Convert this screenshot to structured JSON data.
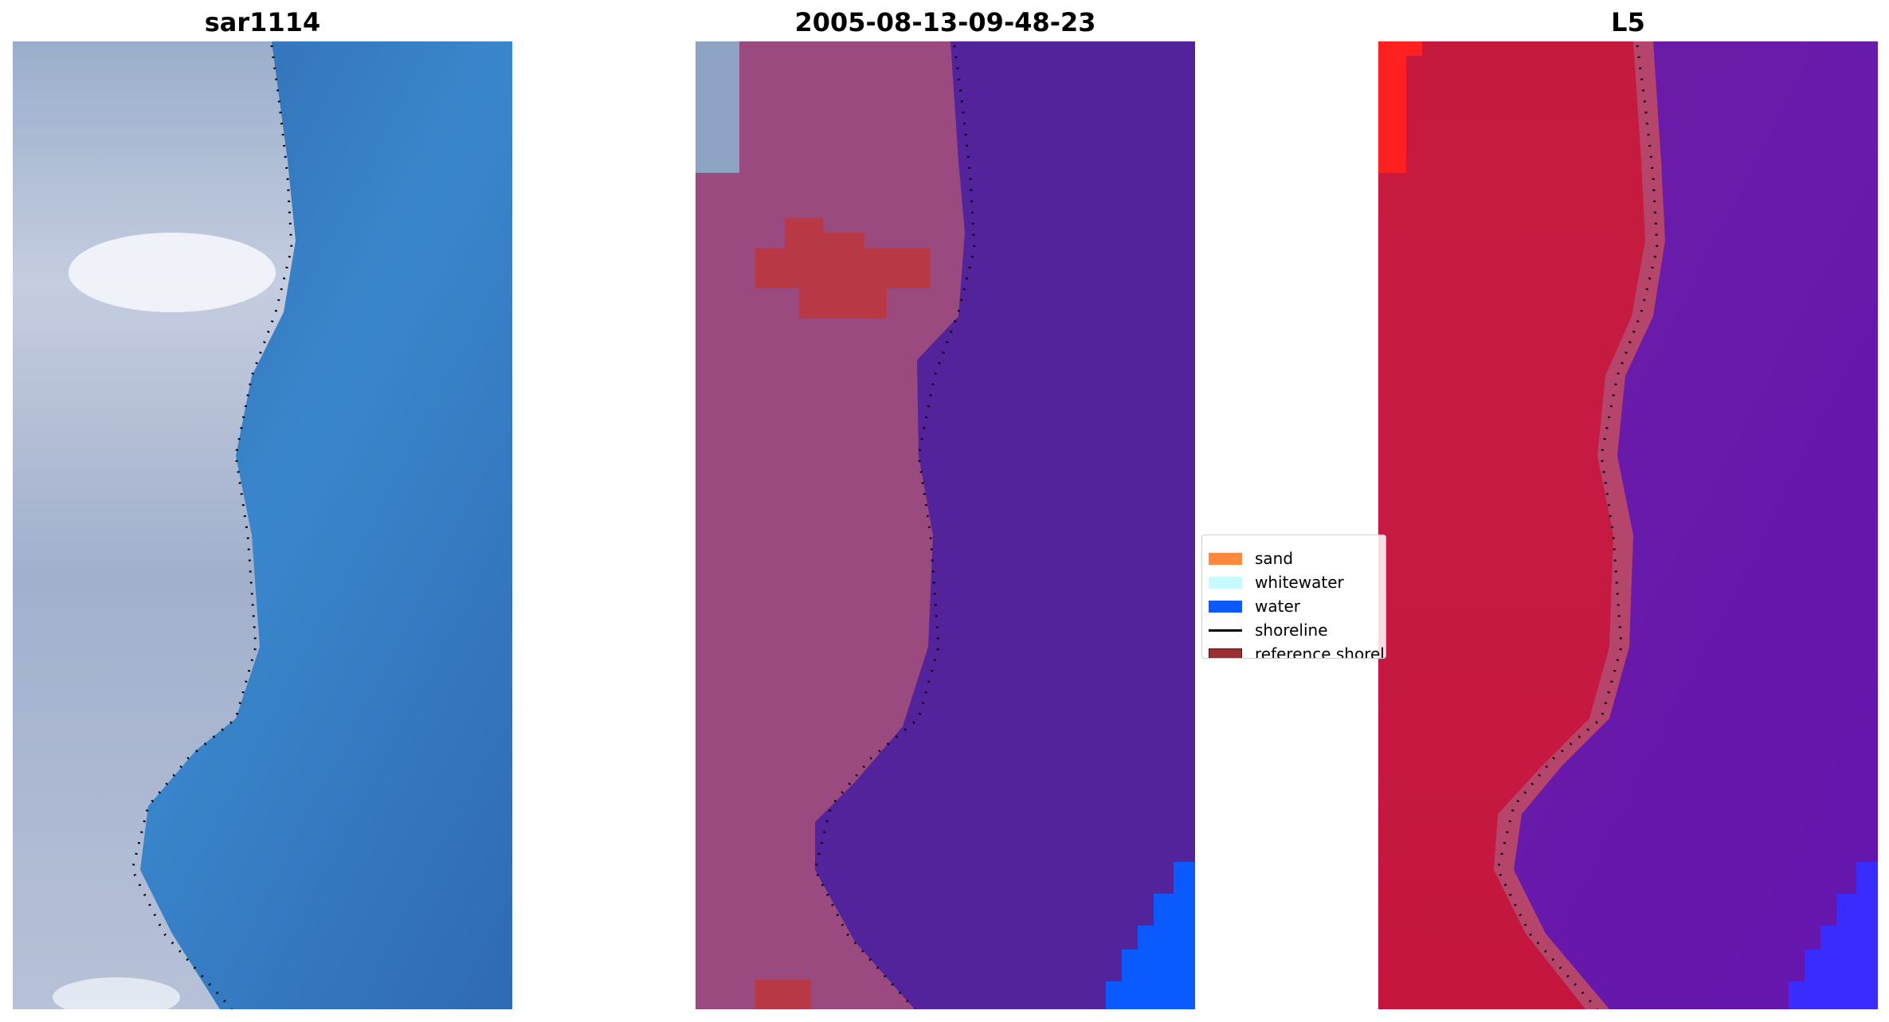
{
  "panels": [
    {
      "title": "sar1114"
    },
    {
      "title": "2005-08-13-09-48-23"
    },
    {
      "title": "L5"
    }
  ],
  "legend": {
    "items": [
      {
        "label": "sand",
        "type": "patch",
        "color": "#ff8a3d"
      },
      {
        "label": "whitewater",
        "type": "patch",
        "color": "#c8fbff"
      },
      {
        "label": "water",
        "type": "patch",
        "color": "#0a5aff"
      },
      {
        "label": "shoreline",
        "type": "line",
        "color": "#000000"
      },
      {
        "label": "reference shoreline",
        "type": "patch",
        "color": "#9b3030"
      }
    ]
  },
  "colors": {
    "rgb_water": "#3478c0",
    "rgb_land": "#a7b3cf",
    "class_land": "#9b4a80",
    "class_water": "#52239a",
    "class_reference": "#b83945",
    "class_blue": "#0a5aff",
    "index_land": "#c11a40",
    "index_water": "#6a1aa8",
    "index_blue": "#3a2cff"
  }
}
